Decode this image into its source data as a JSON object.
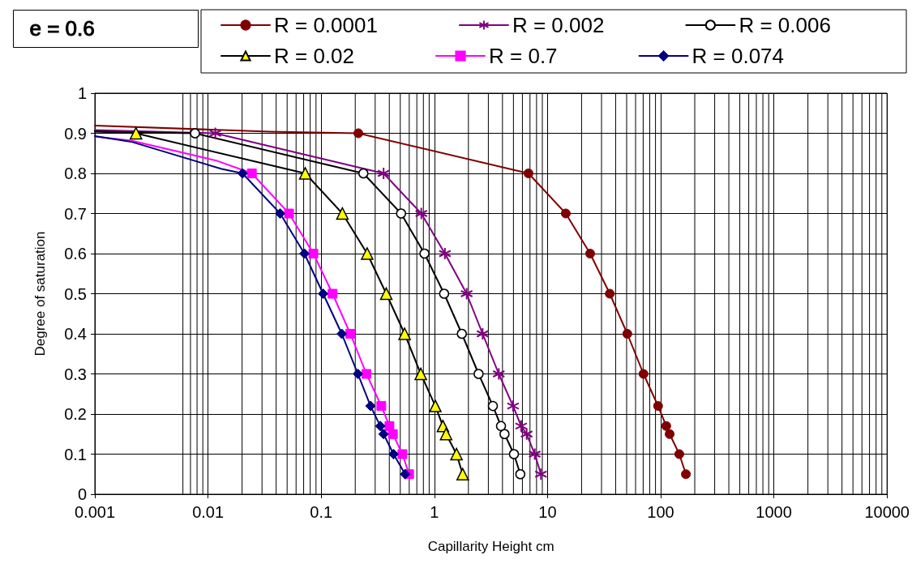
{
  "chart_data": {
    "type": "line",
    "xlabel": "Capillarity Height cm",
    "ylabel": "Degree of saturation",
    "annotations": [
      "e = 0.6"
    ],
    "series": [
      {
        "name": "R = 0.0001",
        "color": "#800000",
        "marker": "circle",
        "x": [
          0.213,
          6.79,
          14.5,
          23.8,
          35.5,
          50.7,
          70.5,
          94.8,
          112,
          120,
          146,
          167
        ],
        "values": [
          0.9,
          0.8,
          0.7,
          0.6,
          0.5,
          0.4,
          0.3,
          0.22,
          0.17,
          0.15,
          0.1,
          0.05
        ]
      },
      {
        "name": "R = 0.002",
        "color": "#800080",
        "marker": "cross",
        "x": [
          0.0116,
          0.356,
          0.767,
          1.24,
          1.93,
          2.67,
          3.71,
          4.96,
          5.85,
          6.54,
          7.71,
          8.75
        ],
        "values": [
          0.9,
          0.8,
          0.7,
          0.6,
          0.5,
          0.4,
          0.3,
          0.22,
          0.17,
          0.15,
          0.1,
          0.05
        ]
      },
      {
        "name": "R = 0.006",
        "color": "#ffffff",
        "marker": "circle",
        "x": [
          0.00767,
          0.236,
          0.508,
          0.818,
          1.22,
          1.75,
          2.46,
          3.29,
          3.88,
          4.17,
          5.05,
          5.75
        ],
        "values": [
          0.9,
          0.8,
          0.7,
          0.6,
          0.5,
          0.4,
          0.3,
          0.22,
          0.17,
          0.15,
          0.1,
          0.05
        ]
      },
      {
        "name": "R = 0.02",
        "color": "#ffff00",
        "marker": "triangle",
        "x": [
          0.00231,
          0.0723,
          0.154,
          0.255,
          0.376,
          0.546,
          0.759,
          1.02,
          1.19,
          1.27,
          1.57,
          1.78
        ],
        "values": [
          0.9,
          0.8,
          0.7,
          0.6,
          0.5,
          0.4,
          0.3,
          0.22,
          0.17,
          0.15,
          0.1,
          0.05
        ]
      },
      {
        "name": "R = 0.7",
        "color": "#ff00ff",
        "marker": "square",
        "x": [
          0.0244,
          0.052,
          0.0853,
          0.126,
          0.181,
          0.251,
          0.34,
          0.401,
          0.43,
          0.522,
          0.598
        ],
        "values": [
          0.8,
          0.7,
          0.6,
          0.5,
          0.4,
          0.3,
          0.22,
          0.17,
          0.15,
          0.1,
          0.05
        ]
      },
      {
        "name": "R = 0.074",
        "color": "#000080",
        "marker": "diamond",
        "x": [
          0.0202,
          0.0434,
          0.0711,
          0.104,
          0.152,
          0.211,
          0.273,
          0.333,
          0.356,
          0.436,
          0.552
        ],
        "values": [
          0.8,
          0.7,
          0.6,
          0.5,
          0.4,
          0.3,
          0.22,
          0.17,
          0.15,
          0.1,
          0.05
        ]
      },
      {
        "color": "#800000",
        "marker": "none",
        "x": [
          0.001,
          0.0352,
          0.213
        ],
        "values": [
          0.919,
          0.904,
          0.9
        ]
      },
      {
        "color": "#800080",
        "marker": "none",
        "x": [
          0.001,
          0.0116
        ],
        "values": [
          0.908,
          0.9
        ]
      },
      {
        "color": "#000000",
        "marker": "none",
        "x": [
          0.001,
          0.00767
        ],
        "values": [
          0.904,
          0.9
        ]
      },
      {
        "color": "#000000",
        "marker": "none",
        "x": [
          0.001,
          0.00231
        ],
        "values": [
          0.905,
          0.9
        ]
      },
      {
        "color": "#ff00ff",
        "marker": "none",
        "x": [
          0.001,
          0.00209,
          0.0118,
          0.0204,
          0.0244
        ],
        "values": [
          0.892,
          0.882,
          0.832,
          0.808,
          0.8
        ]
      },
      {
        "color": "#000080",
        "marker": "none",
        "x": [
          0.001,
          0.00209,
          0.0132,
          0.0202
        ],
        "values": [
          0.893,
          0.879,
          0.811,
          0.8
        ]
      }
    ],
    "xlim": [
      0.001,
      10000
    ],
    "xticks": [
      0.001,
      0.01,
      0.1,
      1,
      10,
      100,
      1000,
      10000
    ],
    "ylim": [
      0,
      1
    ],
    "yticks": [
      0,
      0.1,
      0.2,
      0.3,
      0.4,
      0.5,
      0.6,
      0.7,
      0.8,
      0.9,
      1
    ],
    "log": "x",
    "grid": true,
    "legend": "top"
  }
}
